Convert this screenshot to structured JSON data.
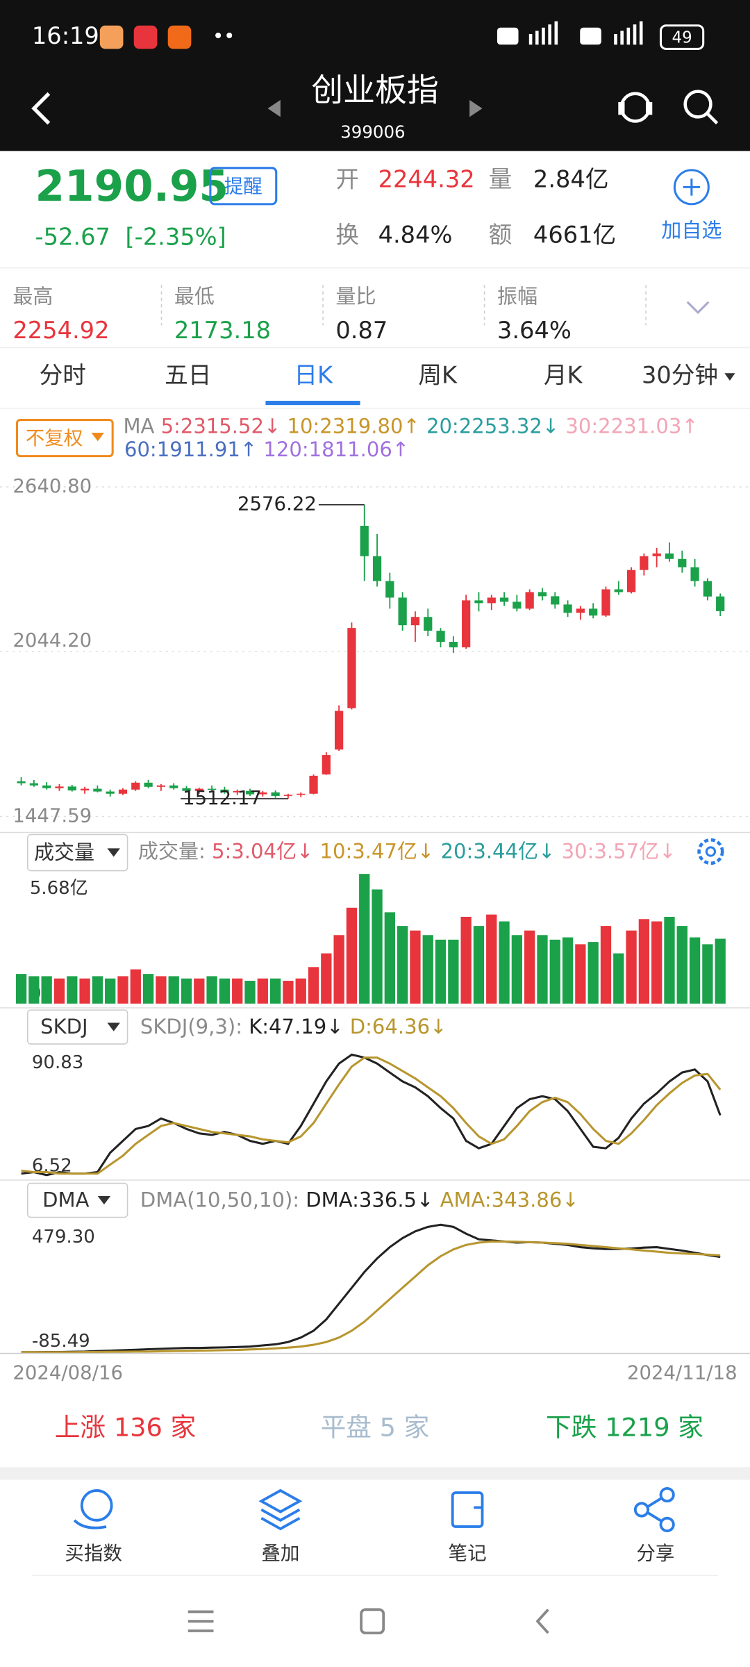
{
  "status": {
    "time": "16:19",
    "battery": "49"
  },
  "header": {
    "title": "创业板指",
    "code": "399006"
  },
  "quote": {
    "price": "2190.95",
    "remind": "提醒",
    "change": "-52.67",
    "pct": "[-2.35%]",
    "fields": [
      {
        "label": "开",
        "value": "2244.32"
      },
      {
        "label": "量",
        "value": "2.84亿"
      },
      {
        "label": "换",
        "value": "4.84%"
      },
      {
        "label": "额",
        "value": "4661亿"
      }
    ],
    "add": "加自选"
  },
  "stats": [
    {
      "label": "最高",
      "value": "2254.92"
    },
    {
      "label": "最低",
      "value": "2173.18"
    },
    {
      "label": "量比",
      "value": "0.87"
    },
    {
      "label": "振幅",
      "value": "3.64%"
    }
  ],
  "tabs": [
    "分时",
    "五日",
    "日K",
    "周K",
    "月K",
    "30分钟"
  ],
  "ma": {
    "button": "不复权",
    "label": "MA",
    "items": [
      {
        "text": "5:2315.52↓",
        "color": "#e05a6a"
      },
      {
        "text": "10:2319.80↑",
        "color": "#c8952a"
      },
      {
        "text": "20:2253.32↓",
        "color": "#2a9d9d"
      },
      {
        "text": "30:2231.03↑",
        "color": "#f2a5b5"
      },
      {
        "text": "60:1911.91↑",
        "color": "#4a6fc0"
      },
      {
        "text": "120:1811.06↑",
        "color": "#a070e0"
      }
    ]
  },
  "kline": {
    "up_color": "#e8343c",
    "down_color": "#1aa14a",
    "ylim": [
      1447.59,
      2640.8
    ],
    "yticks": [
      {
        "value": 2640.8,
        "label": "2640.80"
      },
      {
        "value": 2044.2,
        "label": "2044.20"
      },
      1447.59
    ],
    "candles": [
      [
        1575,
        1590,
        1560,
        1568
      ],
      [
        1568,
        1580,
        1555,
        1560
      ],
      [
        1560,
        1572,
        1545,
        1550
      ],
      [
        1550,
        1565,
        1540,
        1556
      ],
      [
        1556,
        1562,
        1538,
        1542
      ],
      [
        1542,
        1555,
        1530,
        1548
      ],
      [
        1548,
        1560,
        1535,
        1538
      ],
      [
        1538,
        1545,
        1520,
        1530
      ],
      [
        1530,
        1550,
        1525,
        1545
      ],
      [
        1545,
        1575,
        1540,
        1570
      ],
      [
        1570,
        1580,
        1550,
        1555
      ],
      [
        1555,
        1565,
        1540,
        1560
      ],
      [
        1560,
        1568,
        1545,
        1550
      ],
      [
        1550,
        1558,
        1535,
        1540
      ],
      [
        1540,
        1552,
        1530,
        1548
      ],
      [
        1548,
        1560,
        1540,
        1545
      ],
      [
        1545,
        1555,
        1530,
        1535
      ],
      [
        1535,
        1545,
        1525,
        1540
      ],
      [
        1540,
        1548,
        1522,
        1528
      ],
      [
        1528,
        1540,
        1520,
        1535
      ],
      [
        1535,
        1542,
        1515,
        1522
      ],
      [
        1522,
        1530,
        1512.17,
        1526
      ],
      [
        1526,
        1535,
        1518,
        1530
      ],
      [
        1530,
        1600,
        1528,
        1595
      ],
      [
        1600,
        1680,
        1598,
        1670
      ],
      [
        1690,
        1850,
        1685,
        1830
      ],
      [
        1840,
        2150,
        1835,
        2130
      ],
      [
        2500,
        2576.22,
        2300,
        2390
      ],
      [
        2390,
        2470,
        2280,
        2300
      ],
      [
        2300,
        2330,
        2200,
        2240
      ],
      [
        2240,
        2260,
        2120,
        2140
      ],
      [
        2140,
        2190,
        2080,
        2170
      ],
      [
        2170,
        2200,
        2100,
        2120
      ],
      [
        2120,
        2130,
        2060,
        2080
      ],
      [
        2080,
        2100,
        2040,
        2060
      ],
      [
        2060,
        2250,
        2055,
        2230
      ],
      [
        2230,
        2260,
        2190,
        2220
      ],
      [
        2220,
        2250,
        2195,
        2240
      ],
      [
        2240,
        2260,
        2210,
        2225
      ],
      [
        2225,
        2250,
        2190,
        2200
      ],
      [
        2200,
        2270,
        2195,
        2260
      ],
      [
        2260,
        2275,
        2230,
        2245
      ],
      [
        2245,
        2260,
        2200,
        2215
      ],
      [
        2215,
        2230,
        2170,
        2185
      ],
      [
        2185,
        2210,
        2160,
        2200
      ],
      [
        2200,
        2220,
        2165,
        2175
      ],
      [
        2175,
        2280,
        2170,
        2270
      ],
      [
        2270,
        2300,
        2250,
        2260
      ],
      [
        2260,
        2350,
        2255,
        2340
      ],
      [
        2340,
        2400,
        2320,
        2390
      ],
      [
        2390,
        2420,
        2350,
        2400
      ],
      [
        2400,
        2440,
        2370,
        2380
      ],
      [
        2380,
        2410,
        2330,
        2350
      ],
      [
        2350,
        2380,
        2280,
        2300
      ],
      [
        2300,
        2310,
        2230,
        2244
      ],
      [
        2244.32,
        2254.92,
        2173.18,
        2190.95
      ]
    ]
  },
  "volume": {
    "button": "成交量",
    "label": "成交量:",
    "items": [
      {
        "text": "5:3.04亿↓",
        "color": "#e05a6a"
      },
      {
        "text": "10:3.47亿↓",
        "color": "#c8952a"
      },
      {
        "text": "20:3.44亿↓",
        "color": "#2a9d9d"
      },
      {
        "text": "30:3.57亿↓",
        "color": "#f2a5b5"
      }
    ],
    "ylim": [
      0,
      5.68
    ],
    "yticks": [
      {
        "value": 5.68,
        "label": "5.68亿"
      },
      0
    ],
    "values": [
      1.3,
      1.2,
      1.2,
      1.1,
      1.2,
      1.1,
      1.2,
      1.1,
      1.2,
      1.5,
      1.3,
      1.2,
      1.2,
      1.1,
      1.1,
      1.2,
      1.1,
      1.1,
      1.0,
      1.1,
      1.1,
      1.0,
      1.1,
      1.6,
      2.2,
      3.0,
      4.2,
      5.68,
      5.0,
      4.0,
      3.4,
      3.2,
      3.0,
      2.8,
      2.8,
      3.8,
      3.4,
      3.9,
      3.6,
      3.0,
      3.2,
      3.0,
      2.8,
      2.9,
      2.6,
      2.7,
      3.4,
      2.2,
      3.2,
      3.7,
      3.6,
      3.8,
      3.4,
      2.9,
      2.6,
      2.84
    ]
  },
  "skdj": {
    "button": "SKDJ",
    "label": "SKDJ(9,3):",
    "ylim": [
      6.52,
      90.83
    ],
    "yticks": [
      90.83,
      6.52
    ],
    "series": [
      {
        "name": "K:47.19↓",
        "color": "#222222",
        "values": [
          8,
          9,
          7,
          9,
          8,
          8,
          9,
          22,
          30,
          38,
          40,
          45,
          42,
          38,
          35,
          34,
          36,
          34,
          30,
          28,
          30,
          28,
          40,
          55,
          70,
          82,
          88,
          86,
          82,
          76,
          70,
          66,
          60,
          52,
          45,
          30,
          25,
          28,
          40,
          52,
          58,
          60,
          58,
          50,
          38,
          26,
          25,
          32,
          45,
          55,
          62,
          70,
          76,
          78,
          70,
          47.19
        ]
      },
      {
        "name": "D:64.36↓",
        "color": "#b8962e",
        "values": [
          10,
          9,
          9,
          8,
          8,
          8,
          8,
          14,
          20,
          28,
          34,
          40,
          42,
          40,
          38,
          36,
          35,
          34,
          33,
          31,
          30,
          29,
          33,
          42,
          55,
          68,
          80,
          86,
          86,
          82,
          77,
          72,
          66,
          60,
          52,
          42,
          33,
          28,
          31,
          40,
          50,
          56,
          59,
          56,
          48,
          38,
          30,
          28,
          35,
          44,
          54,
          62,
          69,
          74,
          75,
          64.36
        ]
      }
    ]
  },
  "dma": {
    "button": "DMA",
    "label": "DMA(10,50,10):",
    "ylim": [
      -85.49,
      479.3
    ],
    "yticks": [
      {
        "value": 479.3,
        "label": "479.30"
      },
      -85.49
    ],
    "series": [
      {
        "name": "DMA:336.5↓",
        "color": "#222222",
        "values": [
          -85,
          -85,
          -84,
          -84,
          -83,
          -82,
          -80,
          -78,
          -76,
          -74,
          -72,
          -70,
          -68,
          -66,
          -66,
          -65,
          -64,
          -62,
          -60,
          -55,
          -50,
          -40,
          -20,
          10,
          60,
          130,
          200,
          270,
          330,
          380,
          420,
          450,
          470,
          479.3,
          470,
          440,
          415,
          410,
          405,
          400,
          402,
          400,
          395,
          390,
          380,
          375,
          372,
          372,
          374,
          378,
          380,
          372,
          365,
          355,
          345,
          336.5
        ]
      },
      {
        "name": "AMA:343.86↓",
        "color": "#b8962e",
        "values": [
          -85,
          -85,
          -85,
          -85,
          -85,
          -84,
          -84,
          -83,
          -83,
          -82,
          -82,
          -81,
          -80,
          -79,
          -78,
          -77,
          -76,
          -75,
          -73,
          -71,
          -68,
          -65,
          -60,
          -52,
          -40,
          -20,
          10,
          50,
          100,
          150,
          200,
          250,
          300,
          340,
          370,
          390,
          400,
          405,
          405,
          404,
          402,
          400,
          398,
          395,
          390,
          385,
          380,
          375,
          370,
          365,
          360,
          355,
          352,
          350,
          347,
          343.86
        ]
      }
    ]
  },
  "dates": {
    "start": "2024/08/16",
    "end": "2024/11/18"
  },
  "breadth": {
    "up": "上涨 136 家",
    "flat": "平盘 5 家",
    "down": "下跌 1219 家"
  },
  "toolbar": [
    "买指数",
    "叠加",
    "笔记",
    "分享"
  ]
}
